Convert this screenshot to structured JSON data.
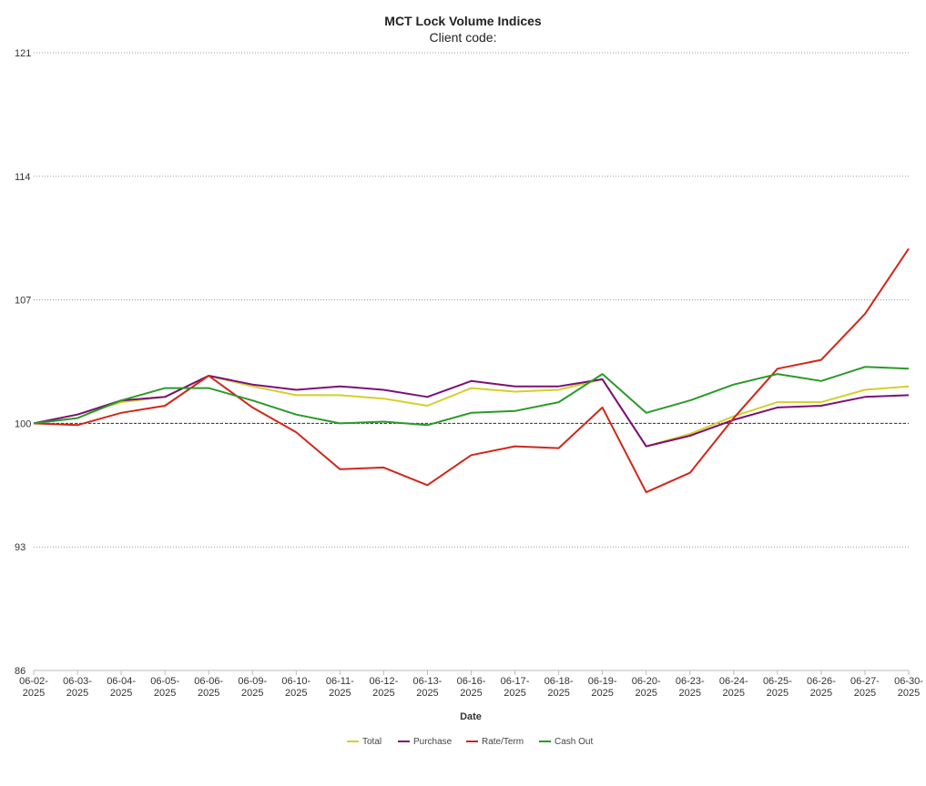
{
  "chart_data": {
    "type": "line",
    "title": "MCT Lock Volume Indices",
    "subtitle": "Client code:",
    "xlabel": "Date",
    "ylabel": "",
    "ylim": [
      86,
      121
    ],
    "yticks": [
      86,
      93,
      100,
      107,
      114,
      121
    ],
    "reference_line": 100,
    "grid": "horizontal-dotted",
    "legend_position": "bottom",
    "categories": [
      [
        "06-02-",
        "2025"
      ],
      [
        "06-03-",
        "2025"
      ],
      [
        "06-04-",
        "2025"
      ],
      [
        "06-05-",
        "2025"
      ],
      [
        "06-06-",
        "2025"
      ],
      [
        "06-09-",
        "2025"
      ],
      [
        "06-10-",
        "2025"
      ],
      [
        "06-11-",
        "2025"
      ],
      [
        "06-12-",
        "2025"
      ],
      [
        "06-13-",
        "2025"
      ],
      [
        "06-16-",
        "2025"
      ],
      [
        "06-17-",
        "2025"
      ],
      [
        "06-18-",
        "2025"
      ],
      [
        "06-19-",
        "2025"
      ],
      [
        "06-20-",
        "2025"
      ],
      [
        "06-23-",
        "2025"
      ],
      [
        "06-24-",
        "2025"
      ],
      [
        "06-25-",
        "2025"
      ],
      [
        "06-26-",
        "2025"
      ],
      [
        "06-27-",
        "2025"
      ],
      [
        "06-30-",
        "2025"
      ]
    ],
    "series": [
      {
        "name": "Total",
        "color": "#d4cf29",
        "values": [
          100,
          100.5,
          101.2,
          101.5,
          102.7,
          102.1,
          101.6,
          101.6,
          101.4,
          101.0,
          102.0,
          101.8,
          101.9,
          102.5,
          98.7,
          99.4,
          100.4,
          101.2,
          101.2,
          101.9,
          102.1
        ]
      },
      {
        "name": "Purchase",
        "color": "#7b1178",
        "values": [
          100,
          100.5,
          101.3,
          101.5,
          102.7,
          102.2,
          101.9,
          102.1,
          101.9,
          101.5,
          102.4,
          102.1,
          102.1,
          102.5,
          98.7,
          99.3,
          100.2,
          100.9,
          101.0,
          101.5,
          101.6
        ]
      },
      {
        "name": "Rate/Term",
        "color": "#d2261a",
        "values": [
          100,
          99.9,
          100.6,
          101.0,
          102.7,
          100.9,
          99.5,
          97.4,
          97.5,
          96.5,
          98.2,
          98.7,
          98.6,
          100.9,
          96.1,
          97.2,
          100.3,
          103.1,
          103.6,
          106.2,
          109.9
        ]
      },
      {
        "name": "Cash Out",
        "color": "#2a9a2a",
        "values": [
          100,
          100.3,
          101.3,
          102.0,
          102.0,
          101.3,
          100.5,
          100.0,
          100.1,
          99.9,
          100.6,
          100.7,
          101.2,
          102.8,
          100.6,
          101.3,
          102.2,
          102.8,
          102.4,
          103.2,
          103.1
        ]
      }
    ]
  }
}
